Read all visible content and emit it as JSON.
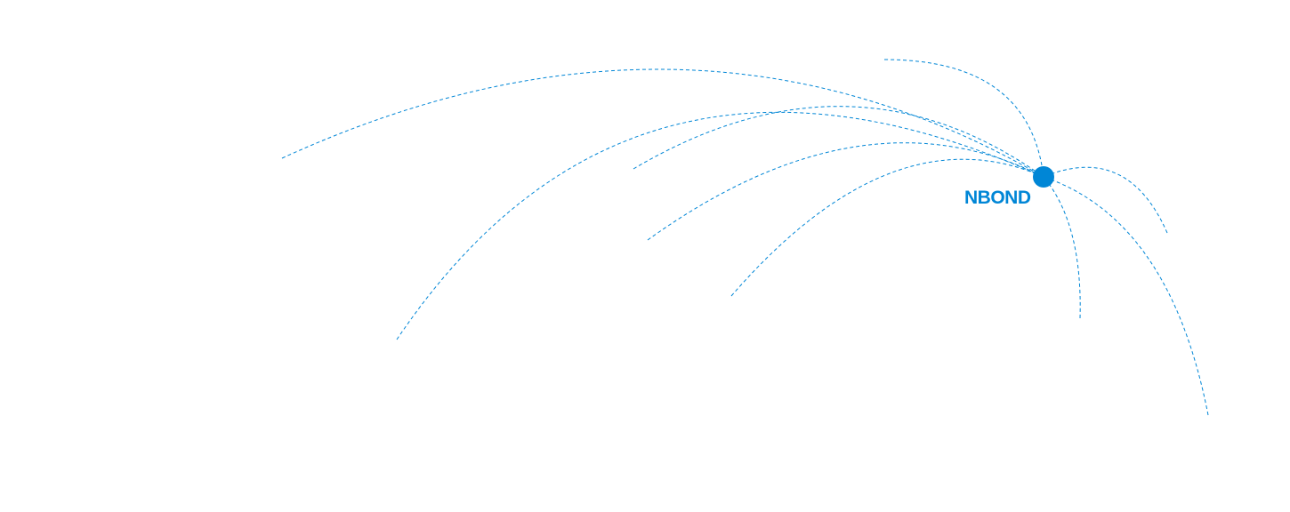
{
  "hub": {
    "label": "NBOND",
    "color": "#0086d6"
  },
  "connections": {
    "count": 9,
    "style": "dashed",
    "color": "#0086d6"
  }
}
